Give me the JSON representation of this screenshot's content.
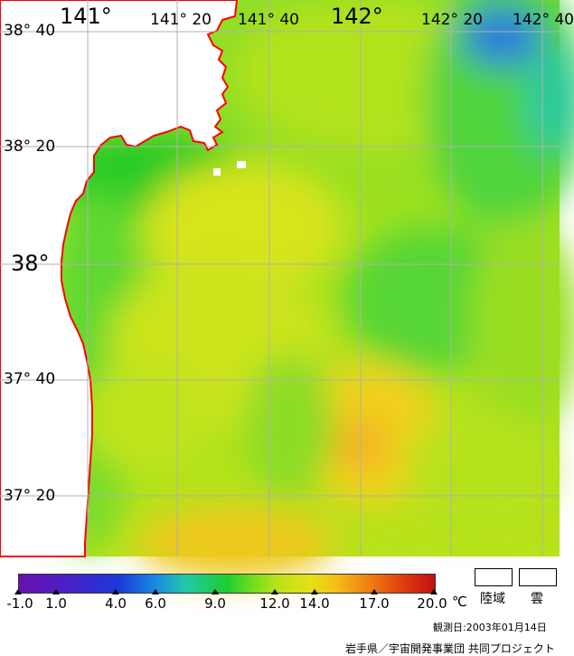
{
  "map": {
    "lon_labels": [
      "141°",
      "141° 20",
      "141° 40",
      "142°",
      "142° 20",
      "142° 40"
    ],
    "lat_labels": [
      "38° 40",
      "38° 20",
      "38°",
      "37° 40",
      "37° 20"
    ],
    "colors": {
      "land": "#ffffff",
      "coast": "#ff0000",
      "grid": "#b0b0b0"
    }
  },
  "legend": {
    "ticks": [
      "-1.0",
      "1.0",
      "4.0",
      "6.0",
      "9.0",
      "12.0",
      "14.0",
      "17.0",
      "20.0"
    ],
    "unit": "℃",
    "land_label": "陸域",
    "cloud_label": "雲"
  },
  "footer": {
    "observation_date": "観測日:2003年01月14日",
    "credit": "岩手県／宇宙開発事業団 共同プロジェクト"
  }
}
